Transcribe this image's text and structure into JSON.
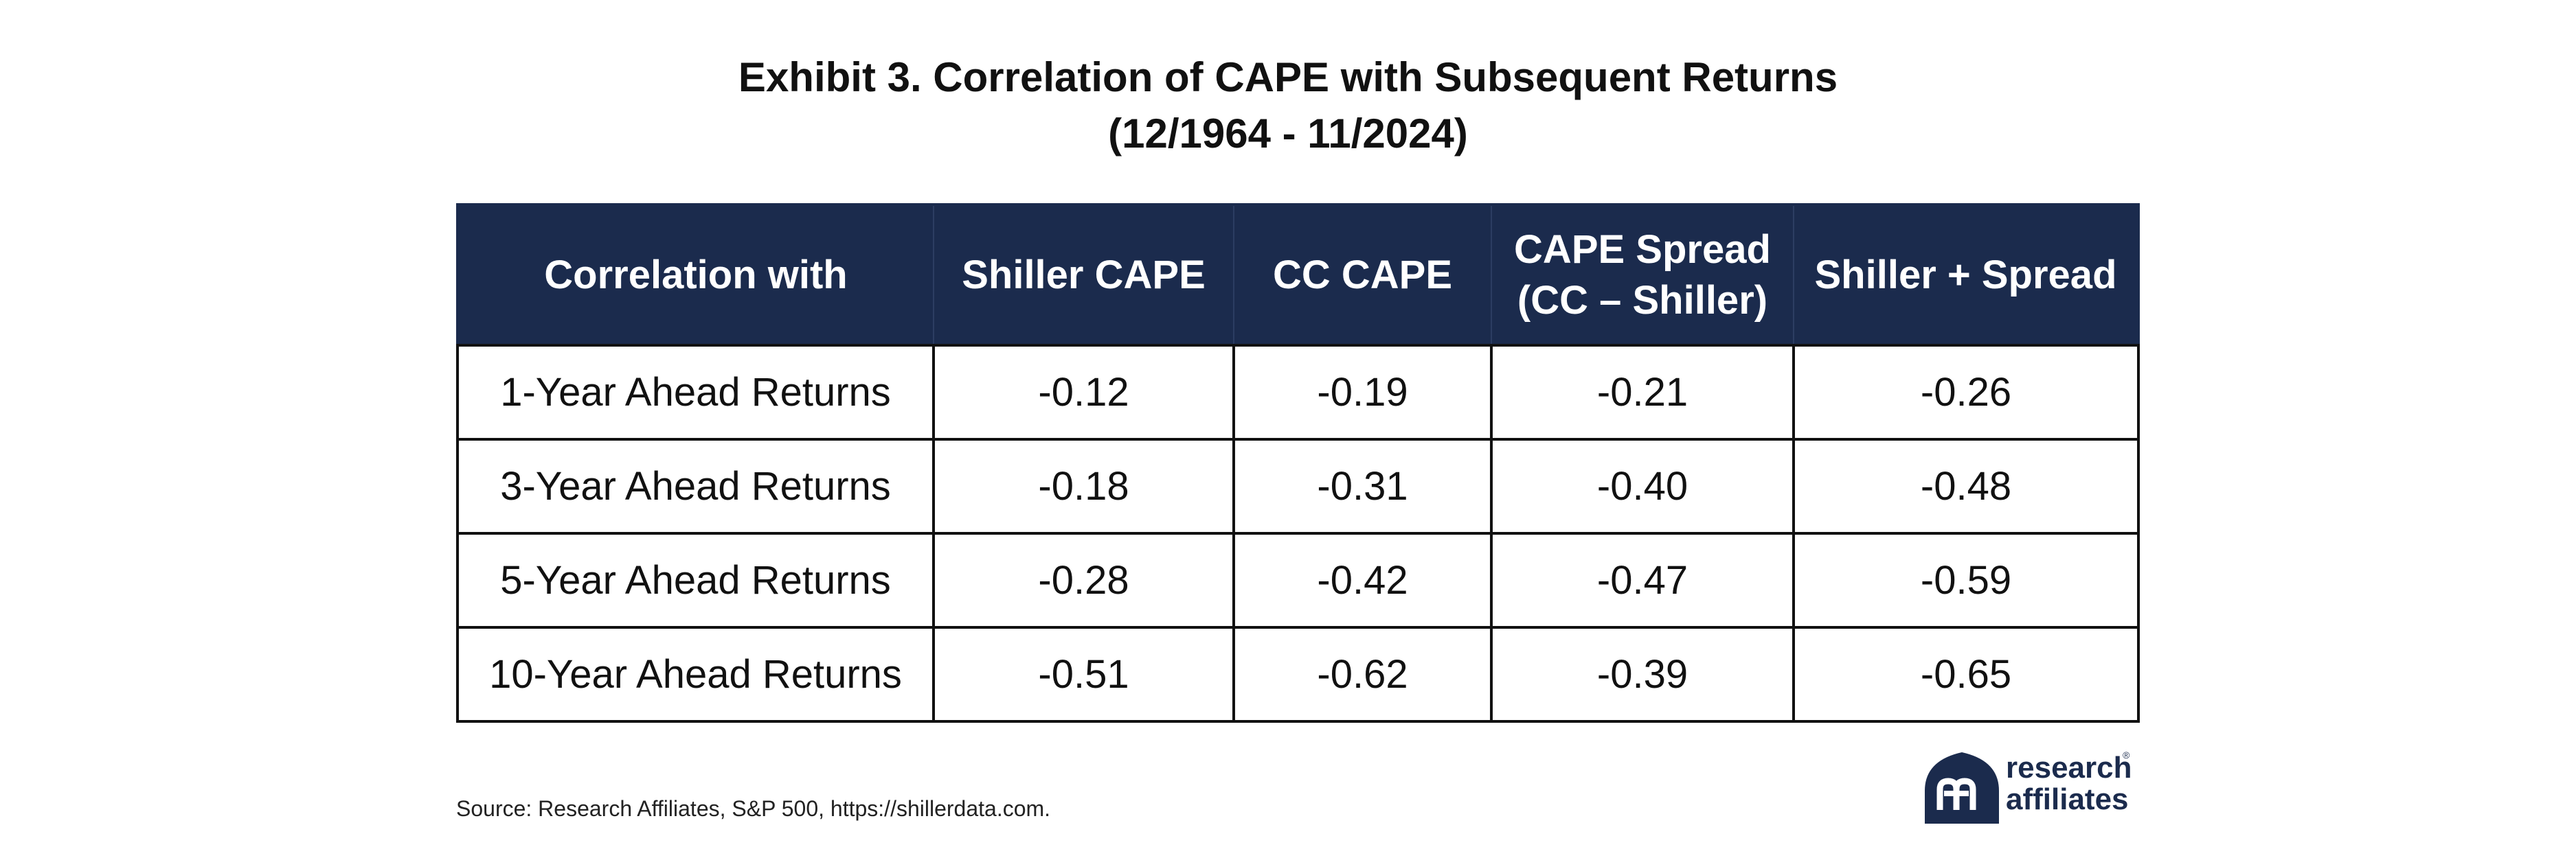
{
  "title": {
    "line1": "Exhibit 3. Correlation of CAPE with Subsequent Returns",
    "line2": "(12/1964 - 11/2024)"
  },
  "chart_data": {
    "type": "table",
    "title": "Exhibit 3. Correlation of CAPE with Subsequent Returns (12/1964 - 11/2024)",
    "columns": [
      {
        "line1": "Correlation with",
        "line2": ""
      },
      {
        "line1": "Shiller CAPE",
        "line2": ""
      },
      {
        "line1": "CC CAPE",
        "line2": ""
      },
      {
        "line1": "CAPE Spread",
        "line2": "(CC – Shiller)"
      },
      {
        "line1": "Shiller + Spread",
        "line2": ""
      }
    ],
    "rows": [
      {
        "label": "1-Year Ahead Returns",
        "values": [
          "-0.12",
          "-0.19",
          "-0.21",
          "-0.26"
        ]
      },
      {
        "label": "3-Year Ahead Returns",
        "values": [
          "-0.18",
          "-0.31",
          "-0.40",
          "-0.48"
        ]
      },
      {
        "label": "5-Year Ahead Returns",
        "values": [
          "-0.28",
          "-0.42",
          "-0.47",
          "-0.59"
        ]
      },
      {
        "label": "10-Year Ahead Returns",
        "values": [
          "-0.51",
          "-0.62",
          "-0.39",
          "-0.65"
        ]
      }
    ]
  },
  "source": "Source: Research Affiliates, S&P 500, https://shillerdata.com.",
  "logo": {
    "line1": "research",
    "line2": "affiliates",
    "reg": "®",
    "icon": "research-affiliates-logo-icon"
  },
  "colors": {
    "header_bg": "#1b2b4d",
    "header_text": "#ffffff",
    "border": "#111111"
  }
}
